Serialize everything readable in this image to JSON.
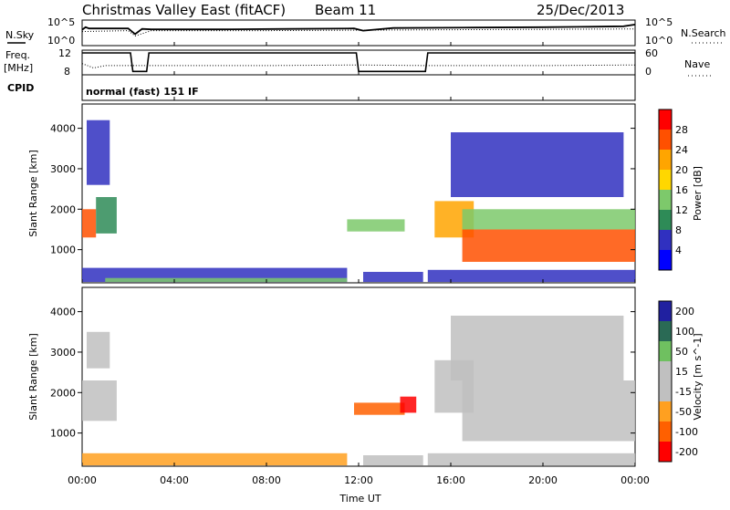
{
  "header": {
    "station": "Christmas Valley East (fitACF)",
    "beam": "Beam 11",
    "date": "25/Dec/2013"
  },
  "summary_panel": {
    "nsky_label": "N.Sky",
    "nsearch_label": "N.Search",
    "freq_label_line1": "Freq.",
    "freq_label_line2": "[MHz]",
    "nave_label": "Nave",
    "cpid_label": "CPID",
    "cpid_text": "normal (fast) 151 IF",
    "noise_ticks": [
      "10^5",
      "10^0"
    ],
    "freq_ticks": [
      "12",
      "8"
    ],
    "nave_ticks": [
      "60",
      "0"
    ],
    "nsearch_ticks": [
      "10^5",
      "10^0"
    ],
    "noise_ylim_log10": [
      0,
      5
    ],
    "freq_ylim_mhz": [
      8,
      12
    ],
    "nave_ylim": [
      0,
      60
    ]
  },
  "axes": {
    "x_label": "Time UT",
    "x_ticks": [
      "00:00",
      "04:00",
      "08:00",
      "12:00",
      "16:00",
      "20:00",
      "00:00"
    ],
    "xlim_hours": [
      0,
      24
    ],
    "y_label": "Slant Range [km]",
    "y_ticks": [
      "1000",
      "2000",
      "3000",
      "4000"
    ],
    "y_tick_values": [
      1000,
      2000,
      3000,
      4000
    ],
    "ylim_km": [
      180,
      4600
    ]
  },
  "colors": {
    "power": [
      "#0000ff",
      "#3030c0",
      "#2e8b57",
      "#7dc96b",
      "#ffd700",
      "#ffa500",
      "#ff5000",
      "#ff0000"
    ],
    "velocity": [
      "#2020a0",
      "#2a6a55",
      "#6fc060",
      "#c0c0c0",
      "#c0c0c0",
      "#ffa020",
      "#ff6000",
      "#ff0000"
    ],
    "ground_scatter": "#c0c0c0"
  },
  "chart_data": [
    {
      "type": "line",
      "title": "",
      "series": [
        {
          "name": "N.Sky",
          "x": [
            0,
            0.15,
            0.3,
            2.0,
            2.3,
            2.6,
            3.0,
            6.0,
            9.0,
            11.8,
            12.2,
            13.5,
            17.0,
            20.0,
            22.0,
            23.5,
            24.0
          ],
          "y": [
            3.2,
            3.8,
            3.5,
            3.5,
            2.2,
            3.4,
            3.3,
            3.3,
            3.4,
            3.5,
            3.0,
            3.6,
            3.7,
            3.8,
            3.9,
            4.0,
            4.4
          ]
        },
        {
          "name": "N.Search",
          "x": [
            0,
            1.0,
            2.0,
            2.3,
            3.0,
            8.0,
            12.0,
            16.0,
            20.0,
            24.0
          ],
          "y": [
            2.8,
            2.9,
            3.0,
            1.8,
            3.0,
            3.0,
            3.1,
            3.2,
            3.3,
            3.4
          ]
        }
      ],
      "xlim": [
        0,
        24
      ],
      "ylim": [
        0,
        5
      ]
    },
    {
      "type": "line",
      "title": "",
      "series": [
        {
          "name": "Freq.",
          "x": [
            0,
            2.1,
            2.2,
            2.8,
            2.9,
            11.9,
            12.0,
            14.9,
            15.0,
            24.0
          ],
          "y": [
            12,
            12,
            8.3,
            8.3,
            12,
            12,
            8.3,
            8.3,
            12,
            12
          ]
        },
        {
          "name": "Nave",
          "x": [
            0,
            0.5,
            1.0,
            2.2,
            2.8,
            8.0,
            12.0,
            15.0,
            20.0,
            24.0
          ],
          "y": [
            28,
            15,
            22,
            22,
            22,
            22,
            24,
            22,
            22,
            24
          ]
        }
      ],
      "xlim": [
        0,
        24
      ],
      "ylim": [
        8,
        12
      ]
    },
    {
      "type": "heatmap",
      "title": "",
      "ylabel": "Slant Range [km]",
      "xlabel": "",
      "colorbar_label": "Power [dB]",
      "colorbar_ticks": [
        "4",
        "8",
        "12",
        "16",
        "20",
        "24",
        "28"
      ],
      "colorbar_values": [
        4,
        8,
        12,
        16,
        20,
        24,
        28
      ],
      "xlim": [
        0,
        24
      ],
      "ylim": [
        180,
        4600
      ],
      "regions": [
        {
          "t0": 0.0,
          "t1": 0.6,
          "r0": 1300,
          "r1": 2000,
          "value": 28
        },
        {
          "t0": 0.6,
          "t1": 1.5,
          "r0": 1400,
          "r1": 2300,
          "value": 12
        },
        {
          "t0": 0.2,
          "t1": 1.2,
          "r0": 2600,
          "r1": 4200,
          "value": 6
        },
        {
          "t0": 0.0,
          "t1": 11.5,
          "r0": 200,
          "r1": 550,
          "value": 6
        },
        {
          "t0": 1.0,
          "t1": 11.5,
          "r0": 200,
          "r1": 300,
          "value": 14
        },
        {
          "t0": 12.2,
          "t1": 14.8,
          "r0": 200,
          "r1": 450,
          "value": 6
        },
        {
          "t0": 11.5,
          "t1": 14.0,
          "r0": 1450,
          "r1": 1750,
          "value": 14
        },
        {
          "t0": 15.0,
          "t1": 24.0,
          "r0": 200,
          "r1": 500,
          "value": 8
        },
        {
          "t0": 15.3,
          "t1": 17.0,
          "r0": 1300,
          "r1": 2200,
          "value": 24
        },
        {
          "t0": 16.5,
          "t1": 24.0,
          "r0": 700,
          "r1": 1500,
          "value": 28
        },
        {
          "t0": 16.5,
          "t1": 24.0,
          "r0": 1500,
          "r1": 2000,
          "value": 16
        },
        {
          "t0": 16.0,
          "t1": 23.5,
          "r0": 2300,
          "r1": 3900,
          "value": 6
        }
      ]
    },
    {
      "type": "heatmap",
      "title": "",
      "ylabel": "Slant Range [km]",
      "xlabel": "Time UT",
      "colorbar_label": "Velocity [m s^-1]",
      "colorbar_ticks": [
        "200",
        "100",
        "50",
        "15",
        "-15",
        "-50",
        "-100",
        "-200"
      ],
      "colorbar_values": [
        200,
        100,
        50,
        15,
        -15,
        -50,
        -100,
        -200
      ],
      "xlim": [
        0,
        24
      ],
      "ylim": [
        180,
        4600
      ],
      "regions": [
        {
          "t0": 0.0,
          "t1": 1.5,
          "r0": 1300,
          "r1": 2300,
          "value": 0
        },
        {
          "t0": 0.2,
          "t1": 1.2,
          "r0": 2600,
          "r1": 3500,
          "value": 0
        },
        {
          "t0": 0.0,
          "t1": 11.5,
          "r0": 200,
          "r1": 500,
          "value": -40
        },
        {
          "t0": 12.2,
          "t1": 14.8,
          "r0": 200,
          "r1": 450,
          "value": 30
        },
        {
          "t0": 11.8,
          "t1": 14.0,
          "r0": 1450,
          "r1": 1750,
          "value": -100
        },
        {
          "t0": 13.8,
          "t1": 14.5,
          "r0": 1500,
          "r1": 1900,
          "value": -120
        },
        {
          "t0": 15.0,
          "t1": 24.0,
          "r0": 200,
          "r1": 500,
          "value": 30
        },
        {
          "t0": 15.3,
          "t1": 17.0,
          "r0": 1500,
          "r1": 2800,
          "value": 40
        },
        {
          "t0": 16.5,
          "t1": 24.0,
          "r0": 800,
          "r1": 2300,
          "value": 0
        },
        {
          "t0": 16.0,
          "t1": 23.5,
          "r0": 2300,
          "r1": 3900,
          "value": 0
        }
      ]
    }
  ]
}
